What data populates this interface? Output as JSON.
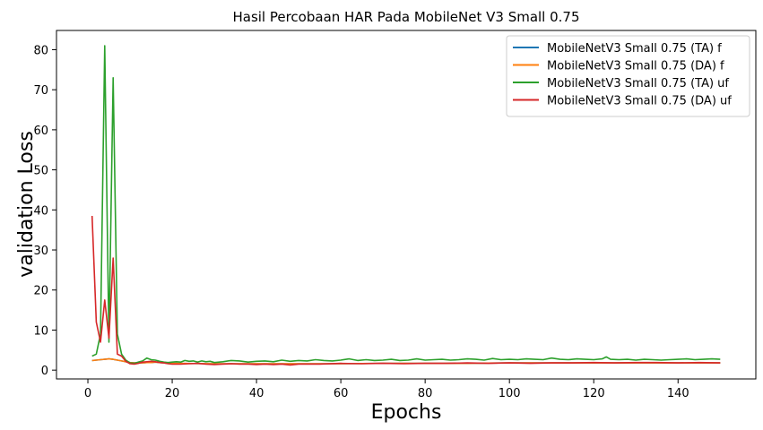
{
  "chart_data": {
    "type": "line",
    "title": "Hasil Percobaan HAR Pada MobileNet V3 Small 0.75",
    "xlabel": "Epochs",
    "ylabel": "validation Loss",
    "xlim": [
      -7.45,
      158.45
    ],
    "ylim": [
      -2.2,
      84.8
    ],
    "xticks": [
      0,
      20,
      40,
      60,
      80,
      100,
      120,
      140
    ],
    "yticks": [
      0,
      10,
      20,
      30,
      40,
      50,
      60,
      70,
      80
    ],
    "grid": false,
    "legend_position": "top-right",
    "series": [
      {
        "name": "MobileNetV3 Small 0.75 (TA) f",
        "color": "#1f77b4",
        "x": [
          1,
          2,
          3,
          4,
          5,
          6,
          7,
          8,
          9,
          10,
          11,
          12,
          13,
          14,
          15,
          16,
          17,
          18,
          19,
          20,
          30,
          40,
          50,
          60,
          70,
          80,
          90,
          100,
          110,
          120,
          130,
          140,
          150
        ],
        "y": [
          2.4,
          2.5,
          2.6,
          2.7,
          2.8,
          2.7,
          2.5,
          2.3,
          2.1,
          1.9,
          1.8,
          1.8,
          1.8,
          1.9,
          1.9,
          2.0,
          1.9,
          1.8,
          1.7,
          1.7,
          1.6,
          1.6,
          1.6,
          1.6,
          1.7,
          1.7,
          1.7,
          1.8,
          1.8,
          1.8,
          1.8,
          1.8,
          1.8
        ]
      },
      {
        "name": "MobileNetV3 Small 0.75 (DA) f",
        "color": "#ff7f0e",
        "x": [
          1,
          2,
          3,
          4,
          5,
          6,
          7,
          8,
          9,
          10,
          11,
          12,
          13,
          14,
          15,
          16,
          17,
          18,
          19,
          20,
          30,
          40,
          50,
          60,
          70,
          80,
          90,
          100,
          110,
          120,
          130,
          140,
          150
        ],
        "y": [
          2.4,
          2.5,
          2.6,
          2.7,
          2.8,
          2.7,
          2.5,
          2.3,
          2.1,
          1.9,
          1.8,
          1.8,
          1.8,
          1.9,
          1.9,
          2.0,
          1.9,
          1.8,
          1.7,
          1.7,
          1.6,
          1.6,
          1.6,
          1.6,
          1.7,
          1.7,
          1.7,
          1.8,
          1.8,
          1.8,
          1.8,
          1.8,
          1.8
        ]
      },
      {
        "name": "MobileNetV3 Small 0.75 (TA) uf",
        "color": "#2ca02c",
        "x": [
          1,
          2,
          3,
          4,
          5,
          6,
          7,
          8,
          9,
          10,
          11,
          12,
          13,
          14,
          15,
          16,
          17,
          18,
          19,
          20,
          21,
          22,
          23,
          24,
          25,
          26,
          27,
          28,
          29,
          30,
          32,
          34,
          36,
          38,
          40,
          42,
          44,
          46,
          48,
          50,
          52,
          54,
          56,
          58,
          60,
          62,
          64,
          66,
          68,
          70,
          72,
          74,
          76,
          78,
          80,
          82,
          84,
          86,
          88,
          90,
          92,
          94,
          96,
          98,
          100,
          102,
          104,
          106,
          108,
          110,
          112,
          114,
          116,
          118,
          120,
          122,
          123,
          124,
          126,
          128,
          130,
          132,
          134,
          136,
          138,
          140,
          142,
          144,
          146,
          148,
          150
        ],
        "y": [
          3.5,
          4,
          9,
          81,
          7,
          73,
          9,
          4,
          2.5,
          1.8,
          1.7,
          2,
          2.3,
          3,
          2.6,
          2.5,
          2.2,
          2,
          1.9,
          2,
          2.1,
          2,
          2.4,
          2.2,
          2.3,
          2,
          2.3,
          2.1,
          2.2,
          1.9,
          2.1,
          2.4,
          2.3,
          2,
          2.2,
          2.3,
          2.1,
          2.5,
          2.2,
          2.4,
          2.3,
          2.6,
          2.4,
          2.3,
          2.5,
          2.8,
          2.4,
          2.6,
          2.4,
          2.5,
          2.7,
          2.4,
          2.5,
          2.8,
          2.5,
          2.6,
          2.7,
          2.5,
          2.6,
          2.8,
          2.7,
          2.5,
          2.9,
          2.6,
          2.7,
          2.6,
          2.8,
          2.7,
          2.6,
          3,
          2.7,
          2.6,
          2.8,
          2.7,
          2.6,
          2.8,
          3.3,
          2.7,
          2.6,
          2.7,
          2.5,
          2.7,
          2.6,
          2.5,
          2.6,
          2.7,
          2.8,
          2.6,
          2.7,
          2.8,
          2.7
        ]
      },
      {
        "name": "MobileNetV3 Small 0.75 (DA) uf",
        "color": "#d62728",
        "x": [
          1,
          2,
          3,
          4,
          5,
          6,
          7,
          8,
          9,
          10,
          11,
          12,
          13,
          14,
          15,
          16,
          17,
          18,
          19,
          20,
          22,
          24,
          26,
          28,
          30,
          32,
          34,
          36,
          38,
          40,
          42,
          44,
          46,
          48,
          50,
          55,
          60,
          65,
          70,
          75,
          80,
          85,
          90,
          95,
          100,
          105,
          110,
          115,
          120,
          125,
          130,
          135,
          140,
          145,
          150
        ],
        "y": [
          38.5,
          12,
          7,
          17.5,
          8,
          28,
          4,
          3.5,
          2.2,
          1.6,
          1.5,
          1.7,
          2,
          2.1,
          2.2,
          2.1,
          1.9,
          1.8,
          1.6,
          1.5,
          1.5,
          1.6,
          1.7,
          1.5,
          1.4,
          1.5,
          1.6,
          1.5,
          1.5,
          1.4,
          1.5,
          1.4,
          1.5,
          1.3,
          1.5,
          1.5,
          1.7,
          1.6,
          1.7,
          1.6,
          1.7,
          1.7,
          1.8,
          1.7,
          1.8,
          1.7,
          1.8,
          1.8,
          1.9,
          1.8,
          1.9,
          1.9,
          1.8,
          1.9,
          1.8
        ]
      }
    ]
  }
}
